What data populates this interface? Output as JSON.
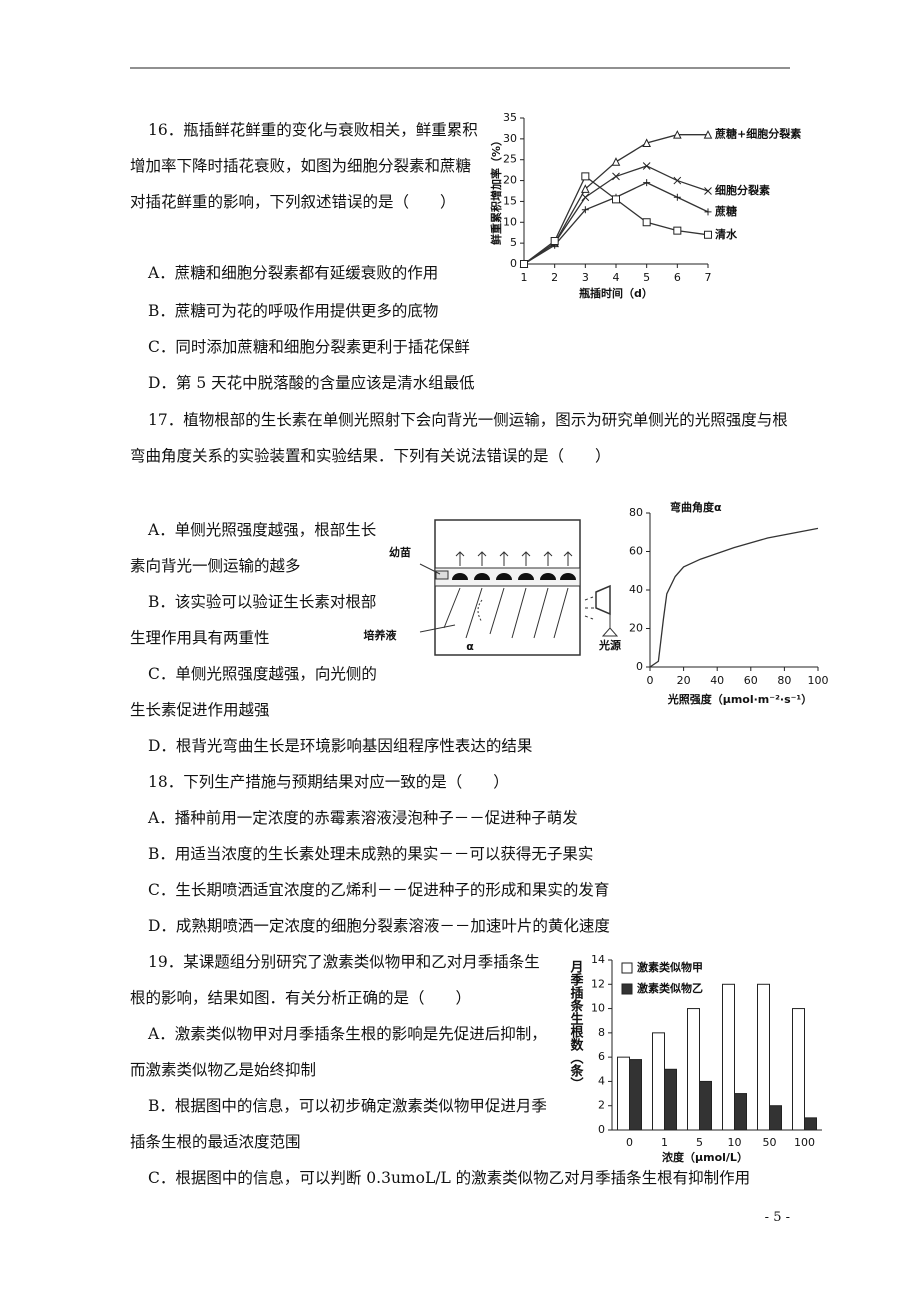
{
  "questions": [
    {
      "stem": "16．瓶插鲜花鲜重的变化与衰败相关，鲜重累积增加率下降时插花衰败，如图为细胞分裂素和蔗糖对插花鲜重的影响，下列叙述错误的是（　　）",
      "options": [
        "A．蔗糖和细胞分裂素都有延缓衰败的作用",
        "B．蔗糖可为花的呼吸作用提供更多的底物",
        "C．同时添加蔗糖和细胞分裂素更利于插花保鲜",
        "D．第 5 天花中脱落酸的含量应该是清水组最低"
      ],
      "figure": {
        "type": "line",
        "y_label": "鲜重累积增加率（%）",
        "x_label": "瓶插时间（d）",
        "x": [
          1,
          2,
          3,
          4,
          5,
          6,
          7
        ],
        "xlim": [
          1,
          7
        ],
        "xticks": [
          1,
          2,
          3,
          4,
          5,
          6,
          7
        ],
        "ylim": [
          0,
          35
        ],
        "yticks": [
          0,
          5,
          10,
          15,
          20,
          25,
          30,
          35
        ],
        "series": [
          {
            "name": "蔗糖+细胞分裂素",
            "color": "#333",
            "marker": "triangle",
            "values": [
              0,
              5,
              18,
              24.5,
              29,
              31,
              31
            ]
          },
          {
            "name": "细胞分裂素",
            "color": "#333",
            "marker": "x",
            "values": [
              0,
              5,
              16,
              21,
              23.5,
              20,
              17.5
            ]
          },
          {
            "name": "蔗糖",
            "color": "#333",
            "marker": "plus",
            "values": [
              0,
              4.5,
              13,
              16,
              19.5,
              16,
              12.5
            ]
          },
          {
            "name": "清水",
            "color": "#333",
            "marker": "square",
            "values": [
              0,
              5.5,
              21,
              15.5,
              10,
              8,
              7
            ]
          }
        ]
      }
    },
    {
      "stem": "17．植物根部的生长素在单侧光照射下会向背光一侧运输，图示为研究单侧光的光照强度与根弯曲角度关系的实验装置和实验结果．下列有关说法错误的是（　　）",
      "options": [
        "A．单侧光照强度越强，根部生长素向背光一侧运输的越多",
        "B．该实验可以验证生长素对根部生理作用具有两重性",
        "C．单侧光照强度越强，向光侧的生长素促进作用越强",
        "D．根背光弯曲生长是环境影响基因组程序性表达的结果"
      ],
      "diagram": {
        "labels": [
          "幼苗",
          "培养液",
          "α",
          "光源"
        ]
      },
      "figure": {
        "type": "line",
        "y_label": "弯曲角度α",
        "x_label": "光照强度（μmol·m⁻²·s⁻¹）",
        "x": [
          0,
          5,
          8,
          10,
          15,
          20,
          30,
          50,
          70,
          100
        ],
        "values": [
          0,
          3,
          25,
          38,
          47,
          52,
          56,
          62,
          67,
          72
        ],
        "color": "#333",
        "xlim": [
          0,
          100
        ],
        "xticks": [
          0,
          20,
          40,
          60,
          80,
          100
        ],
        "ylim": [
          0,
          80
        ],
        "yticks": [
          0,
          20,
          40,
          60,
          80
        ]
      }
    },
    {
      "stem": "18．下列生产措施与预期结果对应一致的是（　　）",
      "options": [
        "A．播种前用一定浓度的赤霉素溶液浸泡种子－－促进种子萌发",
        "B．用适当浓度的生长素处理未成熟的果实－－可以获得无子果实",
        "C．生长期喷洒适宜浓度的乙烯利－－促进种子的形成和果实的发育",
        "D．成熟期喷洒一定浓度的细胞分裂素溶液－－加速叶片的黄化速度"
      ]
    },
    {
      "stem": "19．某课题组分别研究了激素类似物甲和乙对月季插条生根的影响，结果如图．有关分析正确的是（　　）",
      "options": [
        "A．激素类似物甲对月季插条生根的影响是先促进后抑制，而激素类似物乙是始终抑制",
        "B．根据图中的信息，可以初步确定激素类似物甲促进月季插条生根的最适浓度范围",
        "C．根据图中的信息，可以判断 0.3umoL/L 的激素类似物乙对月季插条生根有抑制作用"
      ],
      "figure": {
        "type": "bar",
        "y_label": "月季插条生根数（条）",
        "x_label": "浓度（μmol/L）",
        "categories": [
          "0",
          "1",
          "5",
          "10",
          "50",
          "100"
        ],
        "ylim": [
          0,
          14
        ],
        "yticks": [
          0,
          2,
          4,
          6,
          8,
          10,
          12,
          14
        ],
        "series": [
          {
            "name": "激素类似物甲",
            "color": "#ffffff",
            "values": [
              6,
              8,
              10,
              12,
              12,
              10
            ]
          },
          {
            "name": "激素类似物乙",
            "color": "#333333",
            "values": [
              5.8,
              5,
              4,
              3,
              2,
              1
            ]
          }
        ]
      }
    }
  ],
  "page_number": "- 5 -"
}
